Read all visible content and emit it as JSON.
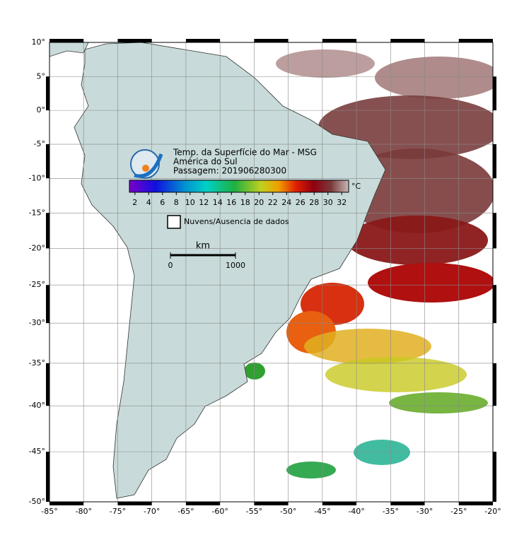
{
  "header": {
    "title": "Temp. da Superfície do Mar - MSG",
    "region": "América do Sul",
    "pass": "Passagem: 201906280300"
  },
  "colorbar": {
    "unit": "°C",
    "range": [
      1.2,
      33
    ],
    "ticks": [
      2,
      4,
      6,
      8,
      10,
      12,
      14,
      16,
      18,
      20,
      22,
      24,
      26,
      28,
      30,
      32
    ]
  },
  "legend": {
    "no_data": "Nuvens/Ausencia de dados"
  },
  "scale_bar": {
    "unit": "km",
    "ticks": [
      0,
      1000
    ]
  },
  "map": {
    "lon_range": [
      -85,
      -20
    ],
    "lat_range": [
      -50,
      10
    ],
    "grid": true,
    "lon_ticks": [
      {
        "value": -85,
        "label": "-85°"
      },
      {
        "value": -80,
        "label": "-80°"
      },
      {
        "value": -75,
        "label": "-75°"
      },
      {
        "value": -70,
        "label": "-70°"
      },
      {
        "value": -65,
        "label": "-65°"
      },
      {
        "value": -60,
        "label": "-60°"
      },
      {
        "value": -55,
        "label": "-55°"
      },
      {
        "value": -50,
        "label": "-50°"
      },
      {
        "value": -45,
        "label": "-45°"
      },
      {
        "value": -40,
        "label": "-40°"
      },
      {
        "value": -35,
        "label": "-35°"
      },
      {
        "value": -30,
        "label": "-30°"
      },
      {
        "value": -25,
        "label": "-25°"
      },
      {
        "value": -20,
        "label": "-20°"
      }
    ],
    "lat_ticks": [
      {
        "value": 10,
        "label": "10°"
      },
      {
        "value": 5,
        "label": "5°"
      },
      {
        "value": 0,
        "label": "0°"
      },
      {
        "value": -5,
        "label": "-5°"
      },
      {
        "value": -10,
        "label": "-10°"
      },
      {
        "value": -15,
        "label": "-15°"
      },
      {
        "value": -20,
        "label": "-20°"
      },
      {
        "value": -25,
        "label": "-25°"
      },
      {
        "value": -30,
        "label": "-30°"
      },
      {
        "value": -35,
        "label": "-35°"
      },
      {
        "value": -40,
        "label": "-40°"
      },
      {
        "value": -45,
        "label": "-45°"
      },
      {
        "value": -50,
        "label": "-50°"
      }
    ]
  }
}
